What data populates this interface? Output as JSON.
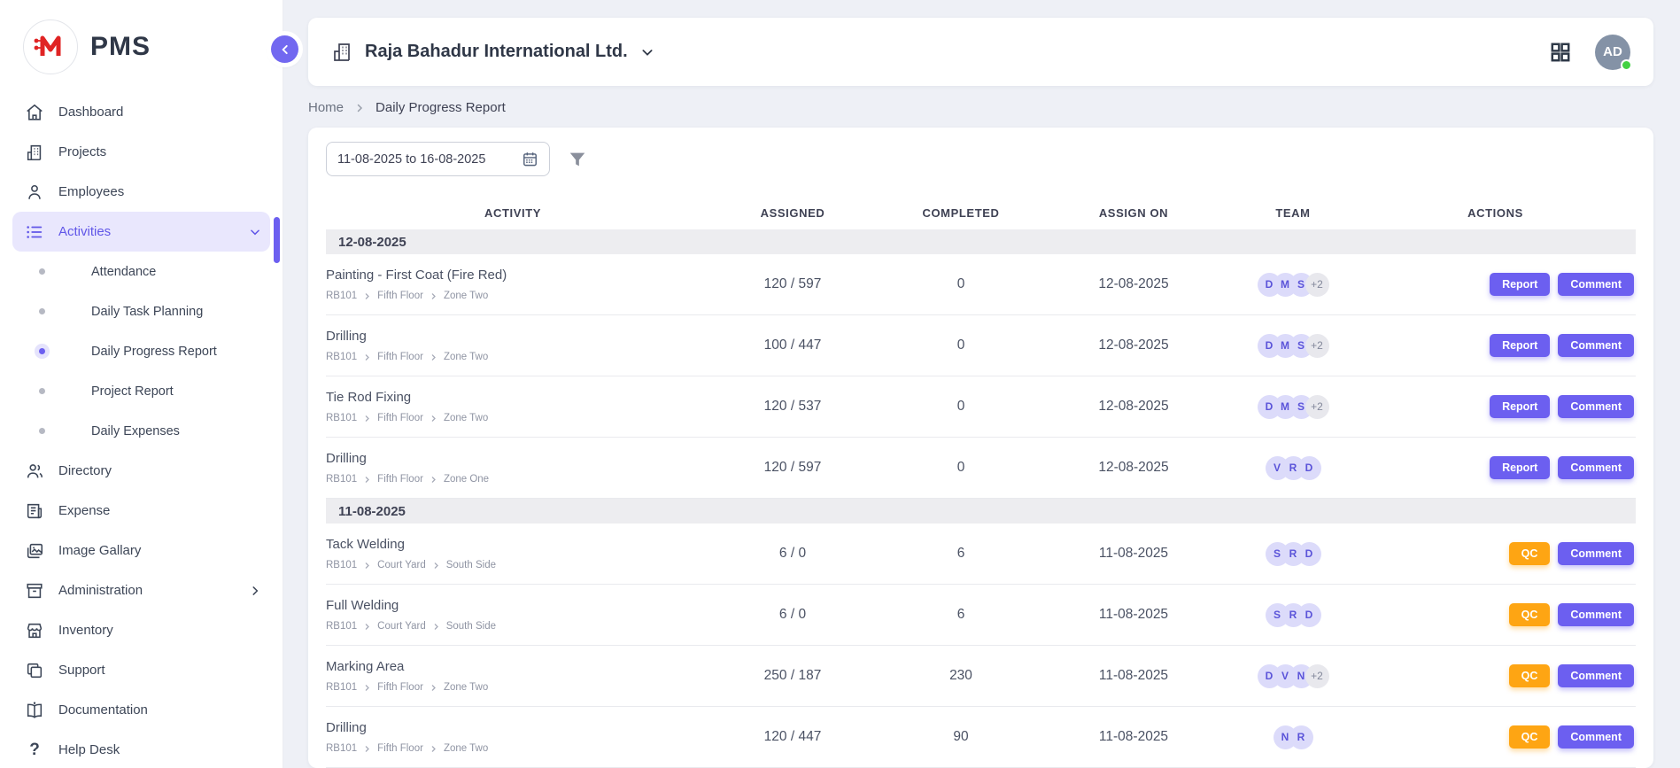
{
  "app": {
    "logo_letter": "M",
    "logo_text": "PMS"
  },
  "colors": {
    "accent": "#6c5ff0",
    "accent_light": "#e9e7fd",
    "qc_orange": "#fea513",
    "logo_red": "#e02424",
    "online_green": "#43d143",
    "badge_bg": "#dcdbfa",
    "badge_text": "#5b54d9",
    "badge_more_bg": "#e8e8ed",
    "badge_more_text": "#82879a"
  },
  "sidebar": {
    "items": [
      {
        "label": "Dashboard"
      },
      {
        "label": "Projects"
      },
      {
        "label": "Employees"
      },
      {
        "label": "Activities"
      },
      {
        "label": "Directory"
      },
      {
        "label": "Expense"
      },
      {
        "label": "Image Gallary"
      },
      {
        "label": "Administration"
      },
      {
        "label": "Inventory"
      },
      {
        "label": "Support"
      },
      {
        "label": "Documentation"
      },
      {
        "label": "Help Desk"
      }
    ],
    "activities_sub": [
      {
        "label": "Attendance",
        "active": false
      },
      {
        "label": "Daily Task Planning",
        "active": false
      },
      {
        "label": "Daily Progress Report",
        "active": true
      },
      {
        "label": "Project Report",
        "active": false
      },
      {
        "label": "Daily Expenses",
        "active": false
      }
    ]
  },
  "header": {
    "company": "Raja Bahadur International Ltd.",
    "avatar_initials": "AD"
  },
  "breadcrumb": {
    "home": "Home",
    "current": "Daily Progress Report"
  },
  "filters": {
    "date_range": "11-08-2025 to 16-08-2025"
  },
  "table": {
    "columns": [
      "ACTIVITY",
      "ASSIGNED",
      "COMPLETED",
      "ASSIGN ON",
      "TEAM",
      "ACTIONS"
    ],
    "groups": [
      {
        "date": "12-08-2025",
        "rows": [
          {
            "activity": "Painting - First Coat (Fire Red)",
            "location": [
              "RB101",
              "Fifth Floor",
              "Zone Two"
            ],
            "assigned": "120 / 597",
            "completed": "0",
            "assign_on": "12-08-2025",
            "team": [
              "D",
              "M",
              "S"
            ],
            "team_more": "+2",
            "primary_action": "Report",
            "secondary_action": "Comment"
          },
          {
            "activity": "Drilling",
            "location": [
              "RB101",
              "Fifth Floor",
              "Zone Two"
            ],
            "assigned": "100 / 447",
            "completed": "0",
            "assign_on": "12-08-2025",
            "team": [
              "D",
              "M",
              "S"
            ],
            "team_more": "+2",
            "primary_action": "Report",
            "secondary_action": "Comment"
          },
          {
            "activity": "Tie Rod Fixing",
            "location": [
              "RB101",
              "Fifth Floor",
              "Zone Two"
            ],
            "assigned": "120 / 537",
            "completed": "0",
            "assign_on": "12-08-2025",
            "team": [
              "D",
              "M",
              "S"
            ],
            "team_more": "+2",
            "primary_action": "Report",
            "secondary_action": "Comment"
          },
          {
            "activity": "Drilling",
            "location": [
              "RB101",
              "Fifth Floor",
              "Zone One"
            ],
            "assigned": "120 / 597",
            "completed": "0",
            "assign_on": "12-08-2025",
            "team": [
              "V",
              "R",
              "D"
            ],
            "team_more": "",
            "primary_action": "Report",
            "secondary_action": "Comment"
          }
        ]
      },
      {
        "date": "11-08-2025",
        "rows": [
          {
            "activity": "Tack Welding",
            "location": [
              "RB101",
              "Court Yard",
              "South Side"
            ],
            "assigned": "6 / 0",
            "completed": "6",
            "assign_on": "11-08-2025",
            "team": [
              "S",
              "R",
              "D"
            ],
            "team_more": "",
            "primary_action": "QC",
            "secondary_action": "Comment"
          },
          {
            "activity": "Full Welding",
            "location": [
              "RB101",
              "Court Yard",
              "South Side"
            ],
            "assigned": "6 / 0",
            "completed": "6",
            "assign_on": "11-08-2025",
            "team": [
              "S",
              "R",
              "D"
            ],
            "team_more": "",
            "primary_action": "QC",
            "secondary_action": "Comment"
          },
          {
            "activity": "Marking Area",
            "location": [
              "RB101",
              "Fifth Floor",
              "Zone Two"
            ],
            "assigned": "250 / 187",
            "completed": "230",
            "assign_on": "11-08-2025",
            "team": [
              "D",
              "V",
              "N"
            ],
            "team_more": "+2",
            "primary_action": "QC",
            "secondary_action": "Comment"
          },
          {
            "activity": "Drilling",
            "location": [
              "RB101",
              "Fifth Floor",
              "Zone Two"
            ],
            "assigned": "120 / 447",
            "completed": "90",
            "assign_on": "11-08-2025",
            "team": [
              "N",
              "R"
            ],
            "team_more": "",
            "primary_action": "QC",
            "secondary_action": "Comment"
          }
        ]
      }
    ]
  }
}
